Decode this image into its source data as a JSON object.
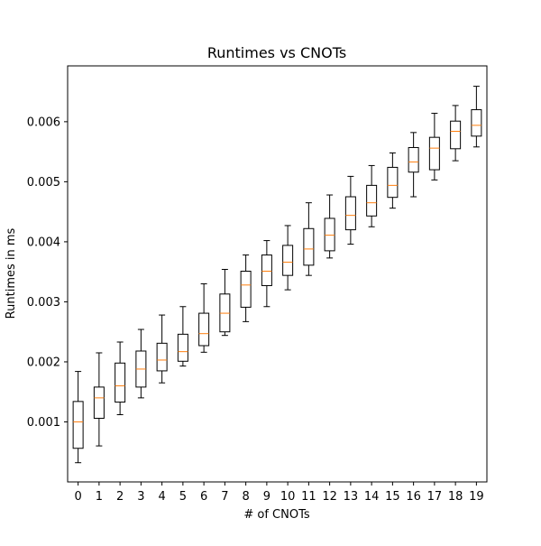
{
  "chart_data": {
    "type": "box",
    "title": "Runtimes vs CNOTs",
    "xlabel": "# of CNOTs",
    "ylabel": "Runtimes in ms",
    "categories": [
      "0",
      "1",
      "2",
      "3",
      "4",
      "5",
      "6",
      "7",
      "8",
      "9",
      "10",
      "11",
      "12",
      "13",
      "14",
      "15",
      "16",
      "17",
      "18",
      "19"
    ],
    "ylim": [
      0.0,
      0.00693
    ],
    "yticks": [
      0.001,
      0.002,
      0.003,
      0.004,
      0.005,
      0.006
    ],
    "ytick_labels": [
      "0.001",
      "0.002",
      "0.003",
      "0.004",
      "0.005",
      "0.006"
    ],
    "grid": false,
    "colors": {
      "box": "#000000",
      "median": "#ff7f0e",
      "axis": "#000000"
    },
    "boxes": [
      {
        "x": "0",
        "whislo": 0.00032,
        "q1": 0.00056,
        "med": 0.001,
        "q3": 0.00134,
        "whishi": 0.00184
      },
      {
        "x": "1",
        "whislo": 0.0006,
        "q1": 0.00106,
        "med": 0.0014,
        "q3": 0.00158,
        "whishi": 0.00215
      },
      {
        "x": "2",
        "whislo": 0.00112,
        "q1": 0.00133,
        "med": 0.0016,
        "q3": 0.00198,
        "whishi": 0.00233
      },
      {
        "x": "3",
        "whislo": 0.0014,
        "q1": 0.00158,
        "med": 0.00188,
        "q3": 0.00218,
        "whishi": 0.00254
      },
      {
        "x": "4",
        "whislo": 0.00165,
        "q1": 0.00185,
        "med": 0.00203,
        "q3": 0.00231,
        "whishi": 0.00278
      },
      {
        "x": "5",
        "whislo": 0.00193,
        "q1": 0.00201,
        "med": 0.00217,
        "q3": 0.00246,
        "whishi": 0.00292
      },
      {
        "x": "6",
        "whislo": 0.00216,
        "q1": 0.00227,
        "med": 0.00247,
        "q3": 0.00281,
        "whishi": 0.0033
      },
      {
        "x": "7",
        "whislo": 0.00244,
        "q1": 0.0025,
        "med": 0.00281,
        "q3": 0.00313,
        "whishi": 0.00354
      },
      {
        "x": "8",
        "whislo": 0.00267,
        "q1": 0.00291,
        "med": 0.00328,
        "q3": 0.00351,
        "whishi": 0.00378
      },
      {
        "x": "9",
        "whislo": 0.00292,
        "q1": 0.00327,
        "med": 0.00351,
        "q3": 0.00378,
        "whishi": 0.00402
      },
      {
        "x": "10",
        "whislo": 0.0032,
        "q1": 0.00344,
        "med": 0.00366,
        "q3": 0.00394,
        "whishi": 0.00427
      },
      {
        "x": "11",
        "whislo": 0.00344,
        "q1": 0.00361,
        "med": 0.00388,
        "q3": 0.00422,
        "whishi": 0.00465
      },
      {
        "x": "12",
        "whislo": 0.00373,
        "q1": 0.00385,
        "med": 0.00411,
        "q3": 0.00439,
        "whishi": 0.00478
      },
      {
        "x": "13",
        "whislo": 0.00396,
        "q1": 0.0042,
        "med": 0.00444,
        "q3": 0.00475,
        "whishi": 0.00509
      },
      {
        "x": "14",
        "whislo": 0.00425,
        "q1": 0.00443,
        "med": 0.00465,
        "q3": 0.00494,
        "whishi": 0.00527
      },
      {
        "x": "15",
        "whislo": 0.00456,
        "q1": 0.00474,
        "med": 0.00494,
        "q3": 0.00524,
        "whishi": 0.00548
      },
      {
        "x": "16",
        "whislo": 0.00475,
        "q1": 0.00516,
        "med": 0.00533,
        "q3": 0.00557,
        "whishi": 0.00582
      },
      {
        "x": "17",
        "whislo": 0.00503,
        "q1": 0.0052,
        "med": 0.00556,
        "q3": 0.00574,
        "whishi": 0.00614
      },
      {
        "x": "18",
        "whislo": 0.00535,
        "q1": 0.00555,
        "med": 0.00584,
        "q3": 0.00601,
        "whishi": 0.00627
      },
      {
        "x": "19",
        "whislo": 0.00558,
        "q1": 0.00576,
        "med": 0.00594,
        "q3": 0.0062,
        "whishi": 0.00659
      }
    ]
  }
}
